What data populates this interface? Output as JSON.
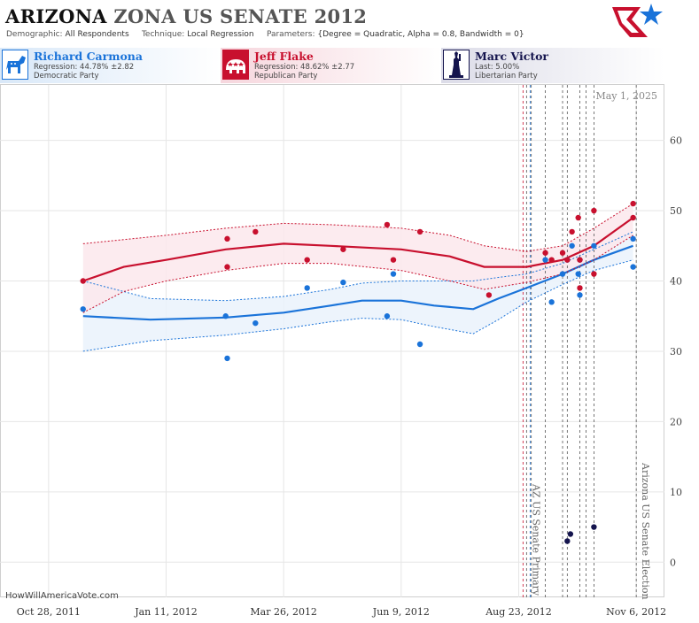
{
  "header": {
    "title_state": "ARIZONA",
    "title_rest": "ZONA US SENATE 2012",
    "demographic_label": "Demographic:",
    "demographic_value": "All Respondents",
    "technique_label": "Technique:",
    "technique_value": "Local Regression",
    "parameters_label": "Parameters:",
    "parameters_value": "{Degree = Quadratic, Alpha = 0.8, Bandwidth = 0}"
  },
  "candidates": [
    {
      "name": "Richard Carmona",
      "stat": "Regression: 44.78% ±2.82",
      "party": "Democratic Party",
      "color": "#1a73d9",
      "icon": "donkey-icon"
    },
    {
      "name": "Jeff Flake",
      "stat": "Regression: 48.62% ±2.77",
      "party": "Republican Party",
      "color": "#c8102e",
      "icon": "elephant-icon"
    },
    {
      "name": "Marc Victor",
      "stat": "Last: 5.00%",
      "party": "Libertarian Party",
      "color": "#14144d",
      "icon": "liberty-icon"
    }
  ],
  "footer": "HowWillAmericaVote.com",
  "chart_data": {
    "type": "scatter",
    "date_label": "May 1, 2025",
    "ylim": [
      -5,
      67
    ],
    "yticks": [
      0,
      10,
      20,
      30,
      40,
      50,
      60
    ],
    "xlim": [
      "2011-09-27",
      "2012-11-24"
    ],
    "xticks": [
      {
        "label": "Oct 28, 2011",
        "date": "2011-10-28"
      },
      {
        "label": "Jan 11, 2012",
        "date": "2012-01-11"
      },
      {
        "label": "Mar 26, 2012",
        "date": "2012-03-26"
      },
      {
        "label": "Jun 9, 2012",
        "date": "2012-06-09"
      },
      {
        "label": "Aug 23, 2012",
        "date": "2012-08-23"
      },
      {
        "label": "Nov 6, 2012",
        "date": "2012-11-06"
      }
    ],
    "events": [
      {
        "label": "AZ US Senate Primary",
        "date": "2012-08-28"
      },
      {
        "label": "Arizona US Senate Election",
        "date": "2012-11-06"
      }
    ],
    "series": [
      {
        "name": "Richard Carmona",
        "color": "#1a73d9",
        "band": "#eaf2fb",
        "points": [
          [
            "2011-11-19",
            36
          ],
          [
            "2012-02-18",
            35
          ],
          [
            "2012-02-19",
            29
          ],
          [
            "2012-03-08",
            34
          ],
          [
            "2012-04-10",
            39
          ],
          [
            "2012-05-03",
            39.8
          ],
          [
            "2012-05-31",
            35
          ],
          [
            "2012-06-04",
            41
          ],
          [
            "2012-06-21",
            31
          ],
          [
            "2012-09-09",
            43
          ],
          [
            "2012-09-13",
            37
          ],
          [
            "2012-09-20",
            41
          ],
          [
            "2012-09-23",
            43
          ],
          [
            "2012-09-26",
            45
          ],
          [
            "2012-09-30",
            41
          ],
          [
            "2012-10-01",
            38
          ],
          [
            "2012-10-01",
            43
          ],
          [
            "2012-10-10",
            45
          ],
          [
            "2012-11-04",
            46
          ],
          [
            "2012-11-04",
            42
          ]
        ],
        "trend": [
          [
            "2011-11-19",
            35
          ],
          [
            "2012-01-01",
            34.5
          ],
          [
            "2012-02-18",
            34.8
          ],
          [
            "2012-03-26",
            35.5
          ],
          [
            "2012-04-25",
            36.5
          ],
          [
            "2012-05-15",
            37.2
          ],
          [
            "2012-06-09",
            37.2
          ],
          [
            "2012-06-30",
            36.5
          ],
          [
            "2012-07-25",
            36
          ],
          [
            "2012-08-10",
            37.5
          ],
          [
            "2012-08-28",
            39
          ],
          [
            "2012-09-20",
            41
          ],
          [
            "2012-10-10",
            43
          ],
          [
            "2012-11-04",
            45
          ]
        ],
        "upper": [
          [
            "2011-11-19",
            40
          ],
          [
            "2012-01-01",
            37.5
          ],
          [
            "2012-02-18",
            37.2
          ],
          [
            "2012-03-26",
            37.8
          ],
          [
            "2012-04-25",
            38.8
          ],
          [
            "2012-05-15",
            39.7
          ],
          [
            "2012-06-09",
            40
          ],
          [
            "2012-06-30",
            40
          ],
          [
            "2012-07-25",
            40
          ],
          [
            "2012-08-10",
            40.5
          ],
          [
            "2012-08-28",
            41
          ],
          [
            "2012-09-20",
            42.5
          ],
          [
            "2012-10-10",
            44.5
          ],
          [
            "2012-11-04",
            47
          ]
        ],
        "lower": [
          [
            "2011-11-19",
            30
          ],
          [
            "2012-01-01",
            31.5
          ],
          [
            "2012-02-18",
            32.3
          ],
          [
            "2012-03-26",
            33.2
          ],
          [
            "2012-04-25",
            34.2
          ],
          [
            "2012-05-15",
            34.7
          ],
          [
            "2012-06-09",
            34.5
          ],
          [
            "2012-06-30",
            33.5
          ],
          [
            "2012-07-25",
            32.5
          ],
          [
            "2012-08-10",
            34.5
          ],
          [
            "2012-08-28",
            37
          ],
          [
            "2012-09-20",
            39.5
          ],
          [
            "2012-10-10",
            41.5
          ],
          [
            "2012-11-04",
            43
          ]
        ]
      },
      {
        "name": "Jeff Flake",
        "color": "#c8102e",
        "band": "#fbe8ec",
        "points": [
          [
            "2011-11-19",
            40
          ],
          [
            "2012-02-19",
            46
          ],
          [
            "2012-02-19",
            42
          ],
          [
            "2012-03-08",
            47
          ],
          [
            "2012-04-10",
            43
          ],
          [
            "2012-05-03",
            44.5
          ],
          [
            "2012-05-31",
            48
          ],
          [
            "2012-06-04",
            43
          ],
          [
            "2012-06-21",
            47
          ],
          [
            "2012-08-04",
            38
          ],
          [
            "2012-09-09",
            44
          ],
          [
            "2012-09-13",
            43
          ],
          [
            "2012-09-20",
            44
          ],
          [
            "2012-09-23",
            43
          ],
          [
            "2012-09-26",
            47
          ],
          [
            "2012-09-30",
            49
          ],
          [
            "2012-10-01",
            43
          ],
          [
            "2012-10-01",
            39
          ],
          [
            "2012-10-10",
            41
          ],
          [
            "2012-10-10",
            50
          ],
          [
            "2012-11-04",
            51
          ],
          [
            "2012-11-04",
            49
          ]
        ],
        "trend": [
          [
            "2011-11-19",
            40
          ],
          [
            "2011-12-15",
            42
          ],
          [
            "2012-01-11",
            43
          ],
          [
            "2012-02-18",
            44.5
          ],
          [
            "2012-03-26",
            45.3
          ],
          [
            "2012-04-25",
            45
          ],
          [
            "2012-06-09",
            44.5
          ],
          [
            "2012-07-10",
            43.5
          ],
          [
            "2012-08-01",
            42
          ],
          [
            "2012-08-28",
            42
          ],
          [
            "2012-09-20",
            43
          ],
          [
            "2012-10-10",
            45
          ],
          [
            "2012-11-04",
            49
          ]
        ],
        "upper": [
          [
            "2011-11-19",
            45.3
          ],
          [
            "2012-01-11",
            46.5
          ],
          [
            "2012-02-18",
            47.5
          ],
          [
            "2012-03-26",
            48.2
          ],
          [
            "2012-04-25",
            48
          ],
          [
            "2012-06-09",
            47.5
          ],
          [
            "2012-07-10",
            46.5
          ],
          [
            "2012-08-01",
            45
          ],
          [
            "2012-08-28",
            44.2
          ],
          [
            "2012-09-20",
            45
          ],
          [
            "2012-10-10",
            47.5
          ],
          [
            "2012-11-04",
            51
          ]
        ],
        "lower": [
          [
            "2011-11-19",
            35.5
          ],
          [
            "2011-12-15",
            38.5
          ],
          [
            "2012-01-11",
            40
          ],
          [
            "2012-02-18",
            41.5
          ],
          [
            "2012-03-26",
            42.5
          ],
          [
            "2012-04-25",
            42.5
          ],
          [
            "2012-06-09",
            41.5
          ],
          [
            "2012-07-10",
            40
          ],
          [
            "2012-08-01",
            38.8
          ],
          [
            "2012-08-28",
            39.8
          ],
          [
            "2012-09-20",
            41
          ],
          [
            "2012-10-10",
            43
          ],
          [
            "2012-11-04",
            46.5
          ]
        ]
      },
      {
        "name": "Marc Victor",
        "color": "#14144d",
        "points": [
          [
            "2012-09-23",
            3
          ],
          [
            "2012-09-25",
            4
          ],
          [
            "2012-10-10",
            5
          ]
        ]
      }
    ],
    "poll_dates": [
      "2012-08-28",
      "2012-08-31",
      "2012-09-09",
      "2012-09-20",
      "2012-09-23",
      "2012-10-01",
      "2012-10-05",
      "2012-10-10",
      "2012-11-06"
    ]
  }
}
